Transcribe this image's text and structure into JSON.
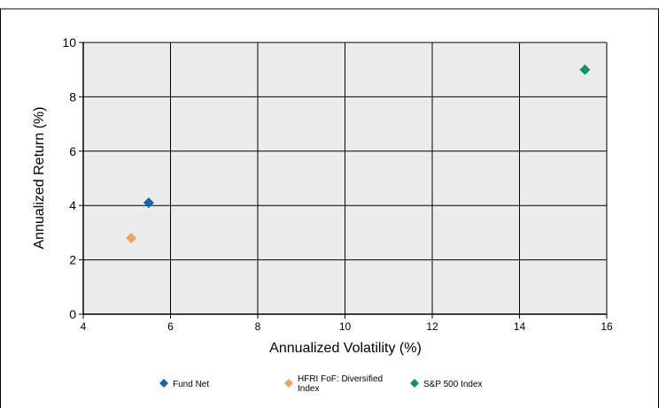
{
  "chart_data": {
    "type": "scatter",
    "title": "",
    "xlabel": "Annualized Volatility (%)",
    "ylabel": "Annualized Return (%)",
    "xlim": [
      4,
      16
    ],
    "ylim": [
      0,
      10
    ],
    "x_ticks": [
      "4",
      "6",
      "8",
      "10",
      "12",
      "14",
      "16"
    ],
    "y_ticks": [
      "0",
      "2",
      "4",
      "6",
      "8",
      "10"
    ],
    "grid": true,
    "legend_position": "bottom",
    "series": [
      {
        "name": "Fund Net",
        "color": "#1565a8",
        "marker": "diamond",
        "x": [
          5.5
        ],
        "y": [
          4.1
        ]
      },
      {
        "name": "HFRI FoF: Diversified Index",
        "name_lines": [
          "HFRI FoF: Diversified",
          "Index"
        ],
        "color": "#f0a35a",
        "marker": "diamond",
        "x": [
          5.1
        ],
        "y": [
          2.8
        ]
      },
      {
        "name": "S&P 500 Index",
        "color": "#13906b",
        "marker": "diamond",
        "x": [
          15.5
        ],
        "y": [
          9.0
        ]
      }
    ],
    "plot_background": "#ececec"
  }
}
